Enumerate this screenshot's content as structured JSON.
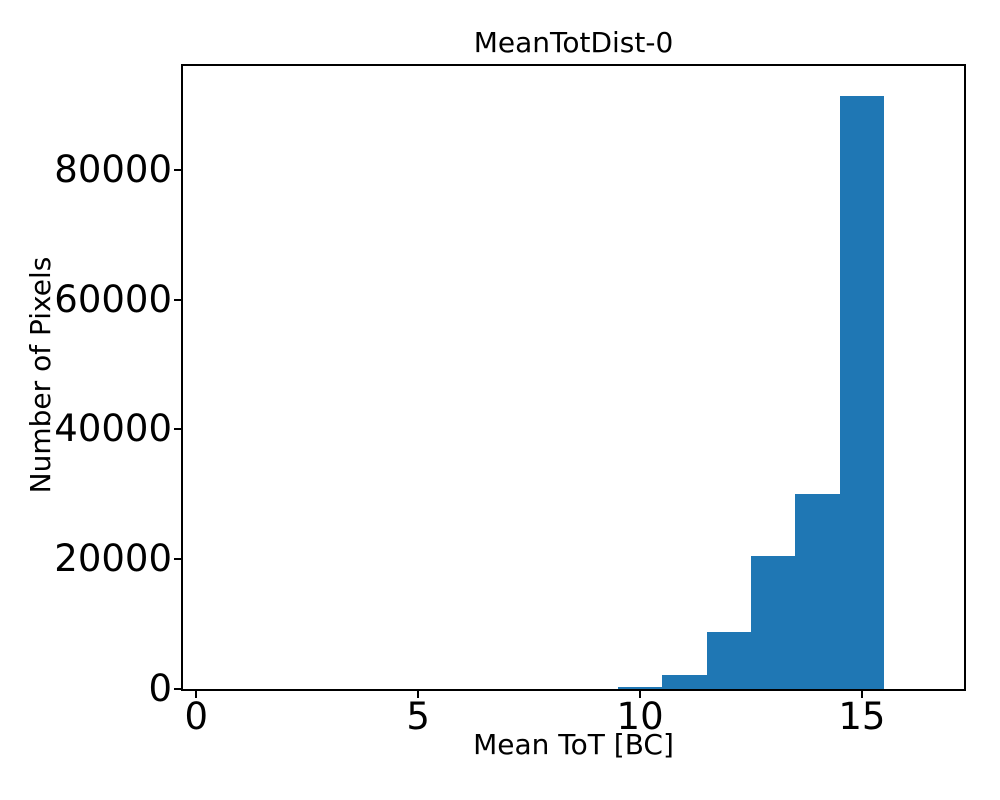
{
  "figure": {
    "background": "#ffffff",
    "text_color": "#000000"
  },
  "chart_data": {
    "type": "bar",
    "subtype": "histogram",
    "title": "MeanTotDist-0",
    "xlabel": "Mean ToT [BC]",
    "ylabel": "Number of Pixels",
    "bar_color": "#1f77b4",
    "axis_color": "#000000",
    "grid": false,
    "legend": null,
    "bin_edges": [
      0.5,
      1.5,
      2.5,
      3.5,
      4.5,
      5.5,
      6.5,
      7.5,
      8.5,
      9.5,
      10.5,
      11.5,
      12.5,
      13.5,
      14.5,
      15.5,
      16.5
    ],
    "bin_centers": [
      1,
      2,
      3,
      4,
      5,
      6,
      7,
      8,
      9,
      10,
      11,
      12,
      13,
      14,
      15,
      16
    ],
    "counts": [
      0,
      0,
      0,
      0,
      0,
      0,
      0,
      0,
      0,
      300,
      2100,
      8800,
      20500,
      30000,
      91400,
      0
    ],
    "xlim": [
      -0.3,
      17.3
    ],
    "ylim": [
      0,
      96000
    ],
    "x_ticks": [
      0,
      5,
      10,
      15
    ],
    "y_ticks": [
      0,
      20000,
      40000,
      60000,
      80000
    ]
  }
}
